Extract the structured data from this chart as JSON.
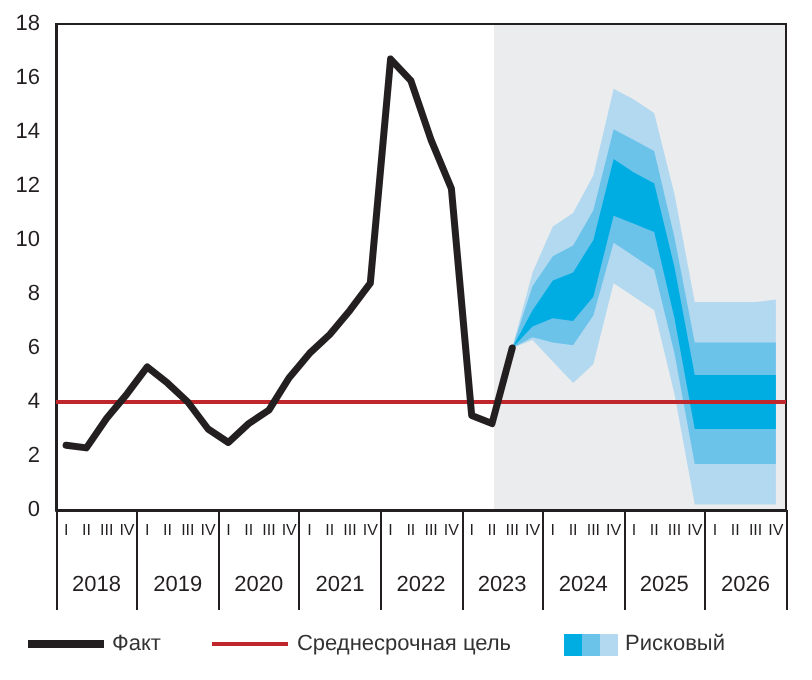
{
  "chart_data": {
    "type": "line",
    "ylim": [
      0,
      18
    ],
    "yticks": [
      0,
      2,
      4,
      6,
      8,
      10,
      12,
      14,
      16,
      18
    ],
    "categories": [
      "I",
      "II",
      "III",
      "IV",
      "I",
      "II",
      "III",
      "IV",
      "I",
      "II",
      "III",
      "IV",
      "I",
      "II",
      "III",
      "IV",
      "I",
      "II",
      "III",
      "IV",
      "I",
      "II",
      "III",
      "IV",
      "I",
      "II",
      "III",
      "IV",
      "I",
      "II",
      "III",
      "IV",
      "I",
      "II",
      "III",
      "IV"
    ],
    "annotations": [
      "2018",
      "2019",
      "2020",
      "2021",
      "2022",
      "2023",
      "2024",
      "2025",
      "2026"
    ],
    "series": [
      {
        "name": "Факт",
        "color": "#231f20",
        "values": [
          2.4,
          2.3,
          3.4,
          4.3,
          5.3,
          4.7,
          4.0,
          3.0,
          2.5,
          3.2,
          3.7,
          4.9,
          5.8,
          6.5,
          7.4,
          8.4,
          16.7,
          15.9,
          13.7,
          11.9,
          3.5,
          3.2,
          6.0,
          null,
          null,
          null,
          null,
          null,
          null,
          null,
          null,
          null,
          null,
          null,
          null,
          null
        ]
      },
      {
        "name": "Рисковый",
        "type": "area",
        "color": "#00ade3",
        "values": [
          null,
          null,
          null,
          null,
          null,
          null,
          null,
          null,
          null,
          null,
          null,
          null,
          null,
          null,
          null,
          null,
          null,
          null,
          null,
          null,
          null,
          null,
          null,
          null,
          null,
          null,
          null,
          null,
          null,
          null,
          null,
          null,
          null,
          null,
          null,
          null
        ],
        "lower": [
          null,
          null,
          null,
          null,
          null,
          null,
          null,
          null,
          null,
          null,
          null,
          null,
          null,
          null,
          null,
          null,
          null,
          null,
          null,
          null,
          null,
          null,
          6.0,
          6.8,
          7.1,
          7.0,
          7.9,
          10.9,
          10.6,
          10.3,
          7.1,
          3.0,
          3.0,
          3.0,
          3.0,
          3.0
        ],
        "upper": [
          null,
          null,
          null,
          null,
          null,
          null,
          null,
          null,
          null,
          null,
          null,
          null,
          null,
          null,
          null,
          null,
          null,
          null,
          null,
          null,
          null,
          null,
          6.0,
          7.4,
          8.5,
          8.8,
          10.0,
          13.0,
          12.5,
          12.1,
          9.0,
          5.0,
          5.0,
          5.0,
          5.0,
          5.0
        ]
      },
      {
        "type": "area",
        "color": "#6cc3ea",
        "values": [
          null,
          null,
          null,
          null,
          null,
          null,
          null,
          null,
          null,
          null,
          null,
          null,
          null,
          null,
          null,
          null,
          null,
          null,
          null,
          null,
          null,
          null,
          null,
          null,
          null,
          null,
          null,
          null,
          null,
          null,
          null,
          null,
          null,
          null,
          null,
          null
        ],
        "lower": [
          null,
          null,
          null,
          null,
          null,
          null,
          null,
          null,
          null,
          null,
          null,
          null,
          null,
          null,
          null,
          null,
          null,
          null,
          null,
          null,
          null,
          null,
          6.0,
          6.4,
          6.2,
          6.1,
          7.2,
          9.9,
          9.4,
          8.9,
          5.8,
          1.7,
          1.7,
          1.7,
          1.7,
          1.7
        ],
        "upper": [
          null,
          null,
          null,
          null,
          null,
          null,
          null,
          null,
          null,
          null,
          null,
          null,
          null,
          null,
          null,
          null,
          null,
          null,
          null,
          null,
          null,
          null,
          6.0,
          8.3,
          9.4,
          9.8,
          11.1,
          14.1,
          13.7,
          13.3,
          10.1,
          6.2,
          6.2,
          6.2,
          6.2,
          6.2
        ]
      },
      {
        "type": "area",
        "color": "#b3d9f0",
        "values": [
          null,
          null,
          null,
          null,
          null,
          null,
          null,
          null,
          null,
          null,
          null,
          null,
          null,
          null,
          null,
          null,
          null,
          null,
          null,
          null,
          null,
          null,
          null,
          null,
          null,
          null,
          null,
          null,
          null,
          null,
          null,
          null,
          null,
          null,
          null,
          null
        ],
        "lower": [
          null,
          null,
          null,
          null,
          null,
          null,
          null,
          null,
          null,
          null,
          null,
          null,
          null,
          null,
          null,
          null,
          null,
          null,
          null,
          null,
          null,
          null,
          6.0,
          6.3,
          5.5,
          4.7,
          5.4,
          8.4,
          7.9,
          7.4,
          4.3,
          0.2,
          0.2,
          0.2,
          0.2,
          0.2
        ],
        "upper": [
          null,
          null,
          null,
          null,
          null,
          null,
          null,
          null,
          null,
          null,
          null,
          null,
          null,
          null,
          null,
          null,
          null,
          null,
          null,
          null,
          null,
          null,
          6.0,
          8.8,
          10.5,
          11.0,
          12.4,
          15.6,
          15.2,
          14.7,
          11.7,
          7.7,
          7.7,
          7.7,
          7.7,
          7.8
        ]
      }
    ],
    "ref_lines": [
      {
        "axis": "y",
        "value": 4,
        "label": "Среднесрочная цель",
        "color": "#c0272d"
      }
    ],
    "grid": false,
    "legend": "bottom",
    "marker": "none",
    "line_style": "solid"
  }
}
